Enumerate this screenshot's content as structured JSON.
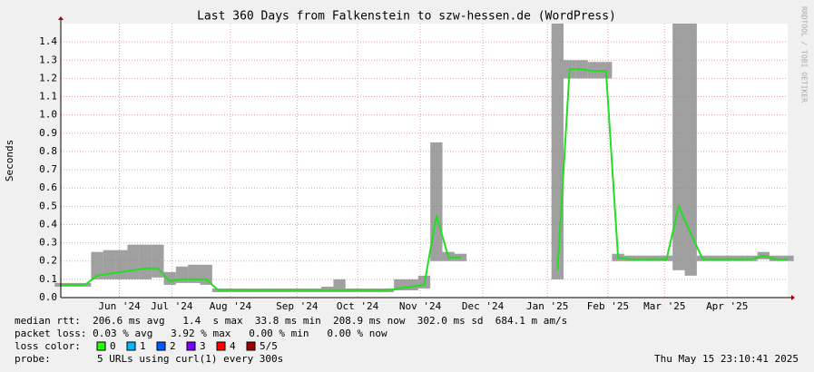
{
  "chart_data": {
    "type": "smokeline",
    "title": "Last 360 Days from Falkenstein to szw-hessen.de (WordPress)",
    "y_label": "Seconds",
    "side_note": "RRDTOOL / TOBI OETIKER",
    "xlim": [
      0,
      360
    ],
    "xticks": [
      {
        "value": 29,
        "label": "Jun '24"
      },
      {
        "value": 55,
        "label": "Jul '24"
      },
      {
        "value": 84,
        "label": "Aug '24"
      },
      {
        "value": 117,
        "label": "Sep '24"
      },
      {
        "value": 147,
        "label": "Oct '24"
      },
      {
        "value": 178,
        "label": "Nov '24"
      },
      {
        "value": 209,
        "label": "Dec '24"
      },
      {
        "value": 241,
        "label": "Jan '25"
      },
      {
        "value": 271,
        "label": "Feb '25"
      },
      {
        "value": 299,
        "label": "Mar '25"
      },
      {
        "value": 330,
        "label": "Apr '25"
      }
    ],
    "ylim": [
      0,
      1.5
    ],
    "yticks": [
      {
        "value": 0,
        "label": "0.0"
      },
      0.1,
      0.2,
      0.3,
      0.4,
      0.5,
      0.6,
      0.7,
      0.8,
      0.9,
      {
        "value": 1,
        "label": "1.0"
      },
      1.1,
      1.2,
      1.3,
      1.4
    ],
    "grid": true,
    "color": "#22dd22",
    "smoke_color": "#888888",
    "x": [
      0,
      6,
      12,
      18,
      24,
      30,
      36,
      42,
      48,
      54,
      60,
      66,
      72,
      78,
      84,
      90,
      96,
      102,
      108,
      114,
      120,
      126,
      132,
      138,
      144,
      150,
      156,
      162,
      168,
      174,
      180,
      186,
      192,
      198,
      204,
      210,
      216,
      222,
      228,
      234,
      240,
      246,
      252,
      258,
      264,
      270,
      276,
      282,
      288,
      294,
      300,
      306,
      312,
      318,
      324,
      330,
      336,
      342,
      348,
      354,
      360
    ],
    "values": [
      0.07,
      0.07,
      0.07,
      0.12,
      0.13,
      0.14,
      0.15,
      0.16,
      0.16,
      0.09,
      0.1,
      0.1,
      0.1,
      0.04,
      0.04,
      0.04,
      0.04,
      0.04,
      0.04,
      0.04,
      0.04,
      0.04,
      0.04,
      0.04,
      0.04,
      0.04,
      0.04,
      0.04,
      0.05,
      0.06,
      0.07,
      0.45,
      0.22,
      0.22,
      null,
      null,
      null,
      null,
      null,
      null,
      null,
      0.15,
      1.25,
      1.25,
      1.24,
      1.24,
      0.22,
      0.21,
      0.21,
      0.21,
      0.21,
      0.5,
      0.35,
      0.21,
      0.21,
      0.21,
      0.21,
      0.21,
      0.23,
      0.21,
      0.21
    ],
    "range_min": [
      0.06,
      0.06,
      0.06,
      0.1,
      0.1,
      0.1,
      0.1,
      0.1,
      0.11,
      0.07,
      0.08,
      0.08,
      0.07,
      0.03,
      0.03,
      0.03,
      0.03,
      0.03,
      0.03,
      0.03,
      0.03,
      0.03,
      0.03,
      0.03,
      0.03,
      0.03,
      0.03,
      0.03,
      0.04,
      0.04,
      0.05,
      0.2,
      0.2,
      0.2,
      null,
      null,
      null,
      null,
      null,
      null,
      null,
      0.1,
      1.2,
      1.2,
      1.2,
      1.2,
      0.2,
      0.2,
      0.2,
      0.2,
      0.2,
      0.15,
      0.12,
      0.2,
      0.2,
      0.2,
      0.2,
      0.2,
      0.21,
      0.2,
      0.2
    ],
    "range_max": [
      0.08,
      0.08,
      0.08,
      0.25,
      0.26,
      0.26,
      0.29,
      0.29,
      0.29,
      0.14,
      0.17,
      0.18,
      0.18,
      0.05,
      0.05,
      0.05,
      0.05,
      0.05,
      0.05,
      0.05,
      0.05,
      0.05,
      0.06,
      0.1,
      0.05,
      0.05,
      0.05,
      0.05,
      0.1,
      0.1,
      0.12,
      0.85,
      0.25,
      0.24,
      null,
      null,
      null,
      null,
      null,
      null,
      null,
      1.5,
      1.3,
      1.3,
      1.29,
      1.29,
      0.24,
      0.23,
      0.23,
      0.23,
      0.23,
      1.5,
      1.5,
      0.23,
      0.23,
      0.23,
      0.23,
      0.23,
      0.25,
      0.23,
      0.23
    ],
    "stats": [
      "median rtt:  206.6 ms avg   1.4  s max  33.8 ms min  208.9 ms now  302.0 ms sd  684.1 m am/s",
      "packet loss: 0.03 % avg   3.92 % max   0.00 % min   0.00 % now"
    ],
    "loss_label": "loss color:",
    "loss_colors": [
      {
        "label": "0",
        "color": "#26ff00"
      },
      {
        "label": "1",
        "color": "#00b8ff"
      },
      {
        "label": "2",
        "color": "#0059ff"
      },
      {
        "label": "3",
        "color": "#7e00ff"
      },
      {
        "label": "4",
        "color": "#ff0000"
      },
      {
        "label": "5/5",
        "color": "#a10000"
      }
    ],
    "probe_label": "probe:",
    "probe": "5 URLs using curl(1) every 300s",
    "timestamp": "Thu May 15 23:10:41 2025"
  }
}
